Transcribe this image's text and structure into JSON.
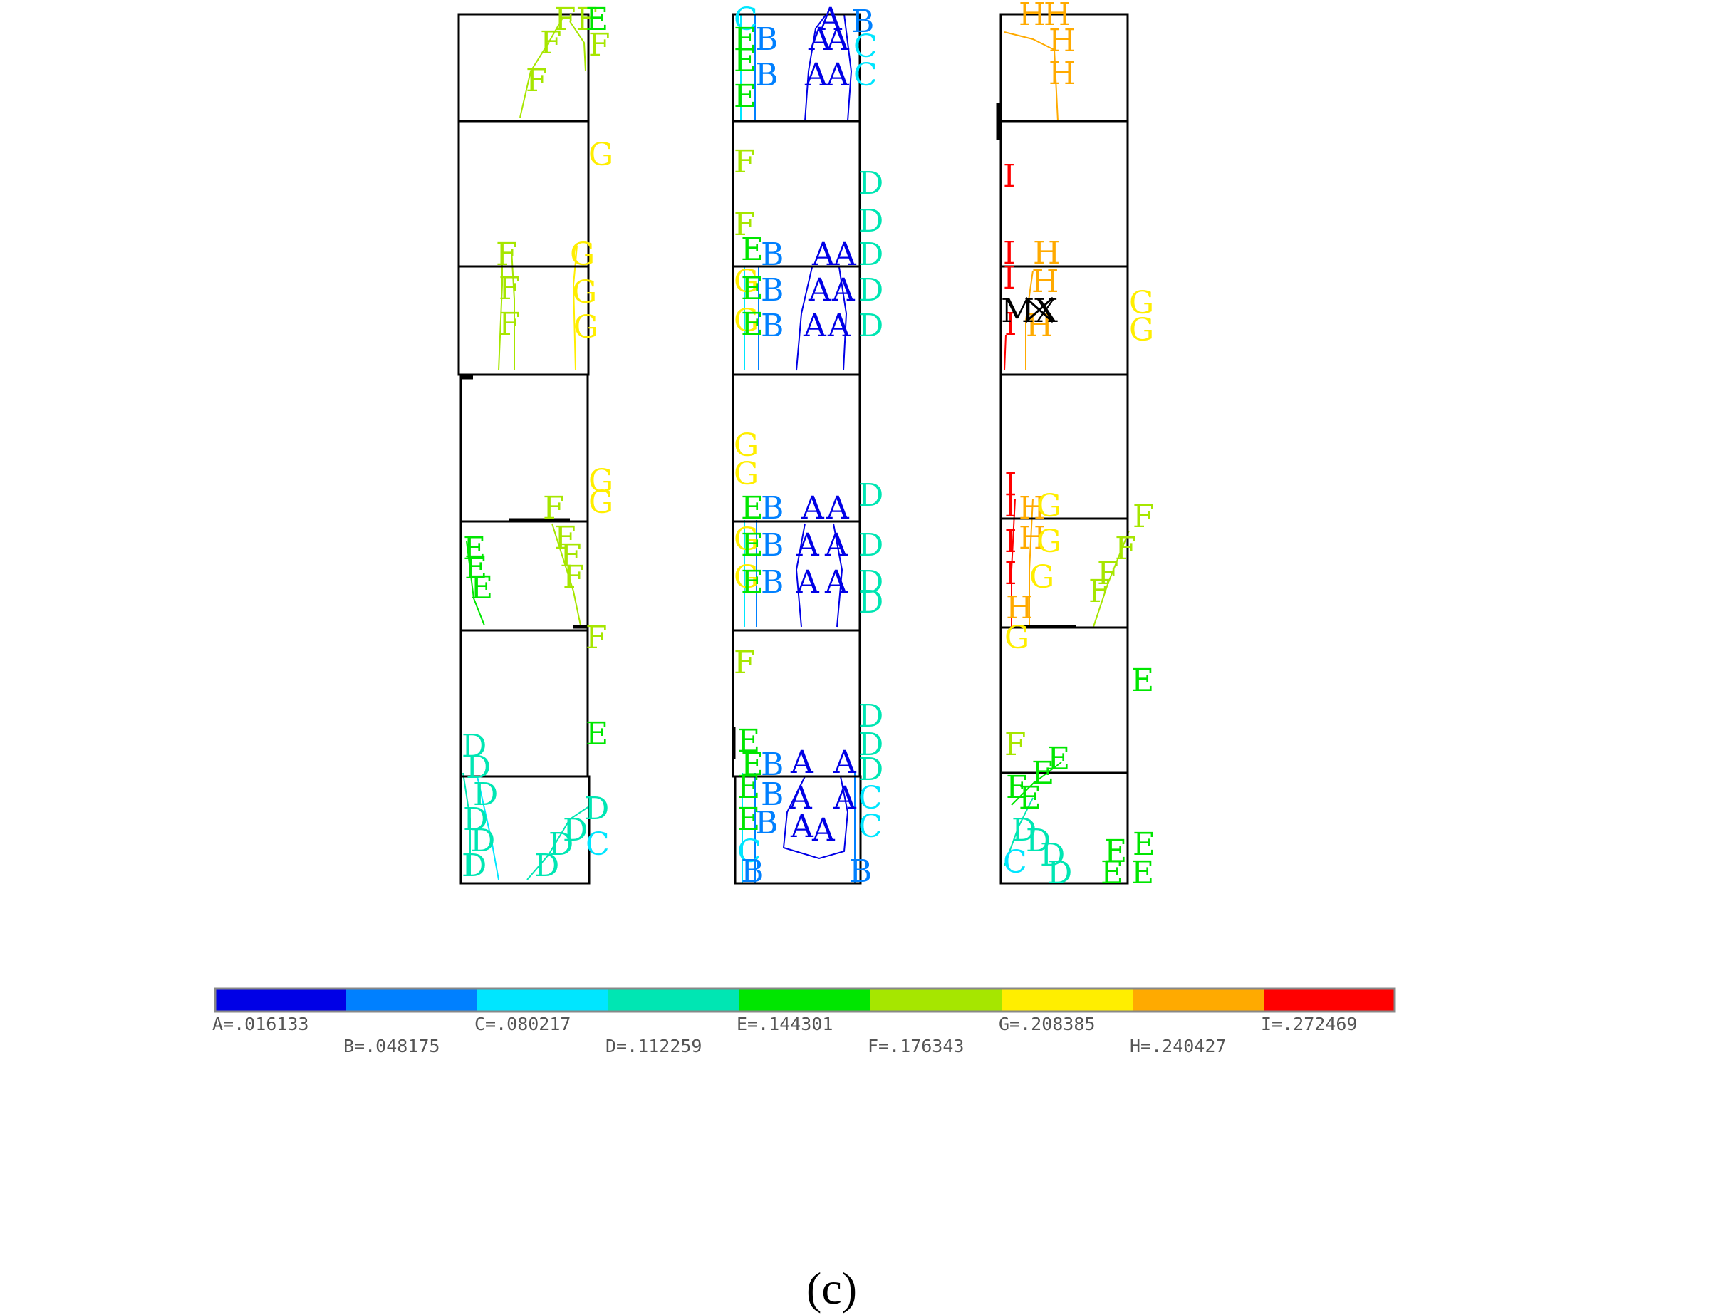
{
  "legend": {
    "levels": [
      {
        "letter": "A",
        "text": "A=.016133",
        "value": 0.016133,
        "color": "#0000e6"
      },
      {
        "letter": "B",
        "text": "B=.048175",
        "value": 0.048175,
        "color": "#0080ff"
      },
      {
        "letter": "C",
        "text": "C=.080217",
        "value": 0.080217,
        "color": "#00e6ff"
      },
      {
        "letter": "D",
        "text": "D=.112259",
        "value": 0.112259,
        "color": "#00e6b3"
      },
      {
        "letter": "E",
        "text": "E=.144301",
        "value": 0.144301,
        "color": "#00e600"
      },
      {
        "letter": "F",
        "text": "F=.176343",
        "value": 0.176343,
        "color": "#a6e600"
      },
      {
        "letter": "G",
        "text": "G=.208385",
        "value": 0.208385,
        "color": "#ffee00"
      },
      {
        "letter": "H",
        "text": "H=.240427",
        "value": 0.240427,
        "color": "#ffaa00"
      },
      {
        "letter": "I",
        "text": "I=.272469",
        "value": 0.272469,
        "color": "#ff0000"
      }
    ]
  },
  "max_marker": {
    "text": "MX"
  },
  "caption": "(c)"
}
